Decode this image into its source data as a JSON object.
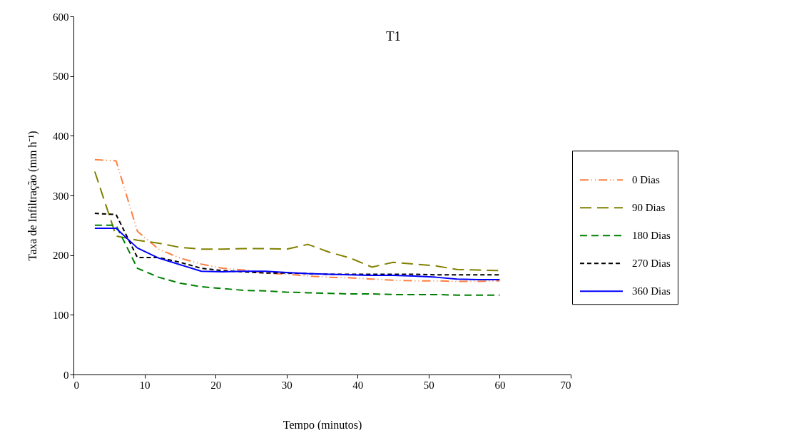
{
  "chart_data": {
    "type": "line",
    "title": "T1",
    "xlabel": "Tempo (minutos)",
    "ylabel": "Taxa de Infiltração (mm h⁻¹)",
    "x": [
      3,
      6,
      9,
      12,
      15,
      18,
      21,
      24,
      27,
      30,
      33,
      36,
      39,
      42,
      45,
      48,
      51,
      54,
      57,
      60
    ],
    "xlim": [
      0,
      70
    ],
    "xticks": [
      0,
      10,
      20,
      30,
      40,
      50,
      60,
      70
    ],
    "ylim": [
      0,
      600
    ],
    "yticks": [
      0,
      100,
      200,
      300,
      400,
      500,
      600
    ],
    "grid": false,
    "legend": "right",
    "marker": "none",
    "series": [
      {
        "name": "0 Dias",
        "color": "#ff7f3f",
        "line_style": "dashed",
        "values": [
          360,
          358,
          240,
          210,
          195,
          185,
          178,
          175,
          170,
          168,
          165,
          163,
          162,
          160,
          158,
          157,
          157,
          156,
          156,
          157
        ]
      },
      {
        "name": "90 Dias",
        "color": "#808000",
        "line_style": "dashed",
        "values": [
          340,
          232,
          225,
          220,
          213,
          210,
          210,
          211,
          211,
          210,
          218,
          205,
          195,
          180,
          188,
          185,
          182,
          176,
          175,
          174
        ]
      },
      {
        "name": "180 Dias",
        "color": "#008000",
        "line_style": "dashed",
        "values": [
          250,
          250,
          178,
          163,
          153,
          147,
          144,
          141,
          140,
          138,
          137,
          136,
          135,
          135,
          134,
          134,
          134,
          133,
          133,
          133
        ]
      },
      {
        "name": "270 Dias",
        "color": "#000000",
        "line_style": "dashed",
        "values": [
          270,
          268,
          196,
          196,
          188,
          178,
          174,
          172,
          170,
          170,
          169,
          168,
          168,
          168,
          168,
          168,
          167,
          167,
          167,
          167
        ]
      },
      {
        "name": "360 Dias",
        "color": "#0000ff",
        "line_style": "solid",
        "values": [
          245,
          245,
          212,
          195,
          184,
          173,
          172,
          173,
          173,
          171,
          169,
          168,
          167,
          166,
          166,
          165,
          163,
          160,
          159,
          159
        ]
      }
    ]
  }
}
